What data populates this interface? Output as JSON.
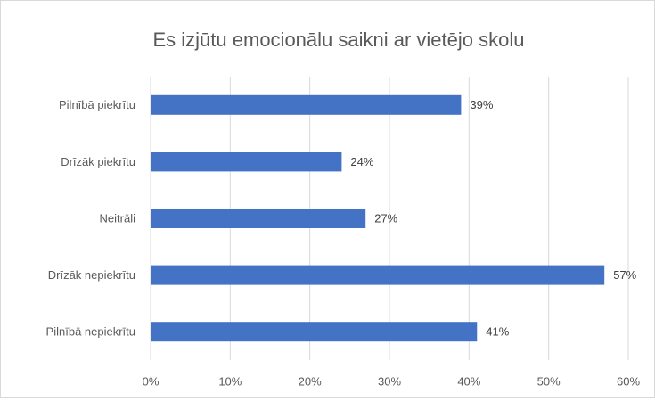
{
  "chart_data": {
    "type": "bar",
    "orientation": "horizontal",
    "title": "Es izjūtu emocionālu saikni ar vietējo skolu",
    "categories": [
      "Pilnībā piekrītu",
      "Drīzāk piekrītu",
      "Neitrāli",
      "Drīzāk nepiekrītu",
      "Pilnībā nepiekrītu"
    ],
    "values": [
      39,
      24,
      27,
      57,
      41
    ],
    "value_labels": [
      "39%",
      "24%",
      "27%",
      "57%",
      "41%"
    ],
    "color": "#4472c4",
    "xlim": [
      0,
      60
    ],
    "xticks": [
      {
        "value": 0,
        "label": "0%"
      },
      {
        "value": 10,
        "label": "10%"
      },
      {
        "value": 20,
        "label": "20%"
      },
      {
        "value": 30,
        "label": "30%"
      },
      {
        "value": 40,
        "label": "40%"
      },
      {
        "value": 50,
        "label": "50%"
      },
      {
        "value": 60,
        "label": "60%"
      }
    ],
    "grid": true
  }
}
